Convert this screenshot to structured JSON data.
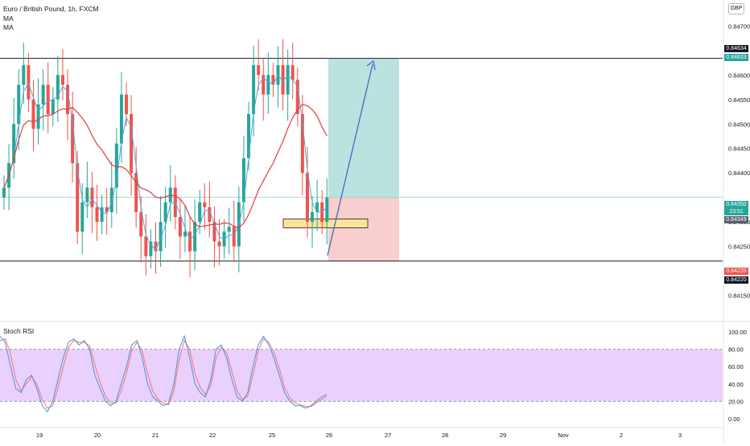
{
  "header": {
    "symbol_line": "Euro / British Pound, 1h, FXCM",
    "ma1": "MA",
    "ma2": "MA"
  },
  "currency_badge": "GBP",
  "price_axis": {
    "min": 0.841,
    "max": 0.8474,
    "ticks": [
      "0.84700",
      "0.84600",
      "0.84550",
      "0.84500",
      "0.84450",
      "0.84400",
      "0.84300",
      "0.84250",
      "0.84150"
    ]
  },
  "price_tags": {
    "top_black": "0.84634",
    "top_green": "0.84633",
    "current_price": "0.84350",
    "countdown": "23:51",
    "current_gray": "0.84349",
    "stop_red": "0.84220",
    "stop_black": "0.84220"
  },
  "horizontal_lines": {
    "resistance": 0.84634,
    "support": 0.8422
  },
  "position_tool": {
    "entry": 0.8435,
    "target": 0.84633,
    "stop": 0.8422,
    "colors": {
      "profit": "#b2dfdb",
      "loss": "#f8c9c9"
    }
  },
  "support_zone": {
    "top": 0.84306,
    "bottom": 0.84288,
    "color": "#fbe39a"
  },
  "rsi_pane": {
    "title": "Stoch RSI",
    "ticks": [
      "100.00",
      "80.00",
      "60.00",
      "40.00",
      "20.00",
      "0.00"
    ],
    "band_upper": 80,
    "band_lower": 20,
    "band_color": "#e6c8fb"
  },
  "time_axis": {
    "labels": [
      "19",
      "20",
      "21",
      "22",
      "25",
      "26",
      "27",
      "28",
      "29",
      "Nov",
      "2",
      "3"
    ]
  },
  "colors": {
    "up": "#26a69a",
    "down": "#ef5350",
    "ma_fast": "#4fa8d8",
    "ma_slow": "#e23b3b",
    "arrow": "#3d6fc2"
  },
  "chart_data": {
    "type": "candlestick",
    "approx_close_series": [
      0.8437,
      0.8442,
      0.845,
      0.8458,
      0.8462,
      0.8455,
      0.8449,
      0.8454,
      0.8458,
      0.8452,
      0.8455,
      0.846,
      0.8458,
      0.8452,
      0.8442,
      0.8428,
      0.8434,
      0.8437,
      0.8433,
      0.843,
      0.8433,
      0.8432,
      0.8437,
      0.8446,
      0.8456,
      0.8452,
      0.844,
      0.8432,
      0.8427,
      0.8423,
      0.8426,
      0.8424,
      0.843,
      0.8434,
      0.8437,
      0.8431,
      0.8427,
      0.8428,
      0.8424,
      0.843,
      0.8434,
      0.8433,
      0.843,
      0.8426,
      0.8425,
      0.8428,
      0.8429,
      0.8425,
      0.8434,
      0.8443,
      0.8452,
      0.8462,
      0.846,
      0.8456,
      0.846,
      0.8458,
      0.8462,
      0.8456,
      0.8462,
      0.8459,
      0.8452,
      0.844,
      0.843,
      0.8432,
      0.8434,
      0.843,
      0.8435
    ],
    "stoch_rsi_k": [
      95,
      88,
      60,
      35,
      30,
      45,
      50,
      35,
      15,
      8,
      20,
      45,
      70,
      88,
      92,
      85,
      90,
      80,
      50,
      35,
      20,
      15,
      20,
      40,
      60,
      85,
      90,
      70,
      40,
      25,
      20,
      15,
      18,
      40,
      80,
      95,
      70,
      40,
      30,
      25,
      45,
      80,
      85,
      70,
      45,
      25,
      20,
      30,
      60,
      85,
      95,
      85,
      70,
      50,
      30,
      20,
      15,
      15,
      12,
      15,
      20,
      25,
      28
    ],
    "stoch_rsi_d": [
      90,
      92,
      75,
      45,
      32,
      40,
      48,
      40,
      22,
      12,
      15,
      35,
      60,
      82,
      90,
      88,
      88,
      84,
      62,
      42,
      26,
      18,
      18,
      32,
      52,
      78,
      88,
      78,
      52,
      32,
      22,
      18,
      16,
      32,
      68,
      90,
      80,
      52,
      36,
      28,
      38,
      70,
      82,
      76,
      55,
      32,
      22,
      26,
      50,
      78,
      92,
      88,
      76,
      58,
      36,
      24,
      18,
      16,
      14,
      14,
      18,
      22,
      26
    ]
  }
}
